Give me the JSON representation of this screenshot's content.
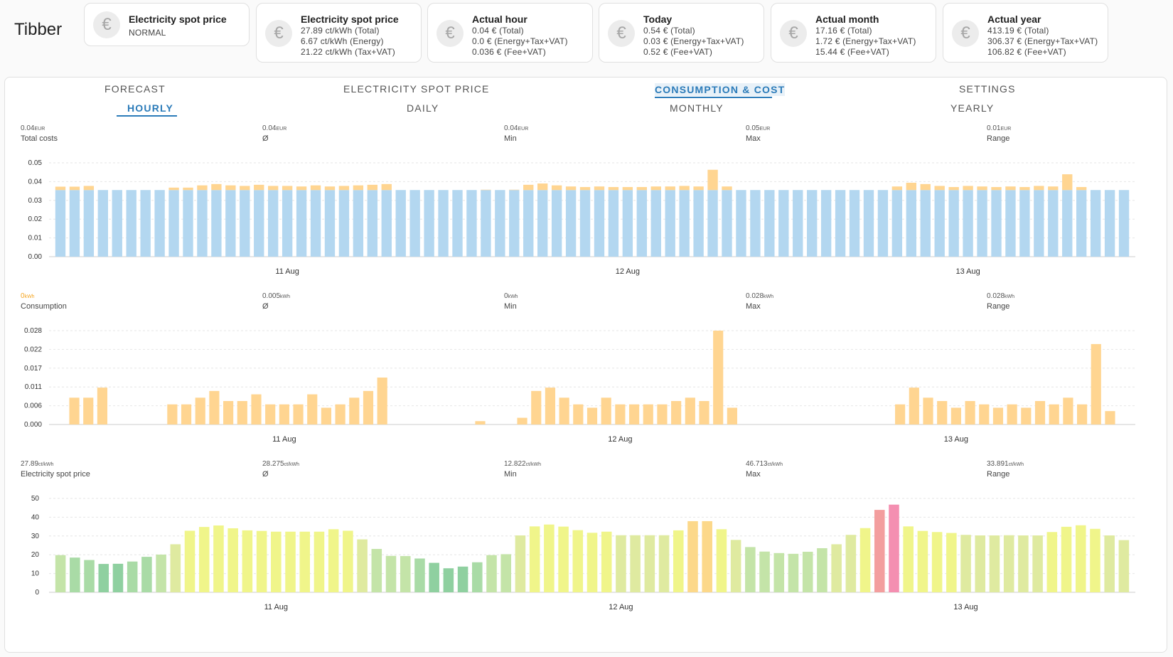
{
  "app": {
    "title": "Tibber"
  },
  "cards": [
    {
      "title": "Electricity spot price",
      "lines": [
        "NORMAL"
      ]
    },
    {
      "title": "Electricity spot price",
      "lines": [
        "27.89 ct/kWh (Total)",
        "6.67 ct/kWh (Energy)",
        "21.22 ct/kWh (Tax+VAT)"
      ]
    },
    {
      "title": "Actual hour",
      "lines": [
        "0.04 € (Total)",
        "0.0 € (Energy+Tax+VAT)",
        "0.036 € (Fee+VAT)"
      ]
    },
    {
      "title": "Today",
      "lines": [
        "0.54 € (Total)",
        "0.03 € (Energy+Tax+VAT)",
        "0.52 € (Fee+VAT)"
      ]
    },
    {
      "title": "Actual month",
      "lines": [
        "17.16 € (Total)",
        "1.72 € (Energy+Tax+VAT)",
        "15.44 € (Fee+VAT)"
      ]
    },
    {
      "title": "Actual year",
      "lines": [
        "413.19 € (Total)",
        "306.37 € (Energy+Tax+VAT)",
        "106.82 € (Fee+VAT)"
      ]
    }
  ],
  "card_icon": "euro-icon",
  "tabs_top": [
    {
      "label": "FORECAST",
      "active": false
    },
    {
      "label": "ELECTRICITY SPOT PRICE",
      "active": false
    },
    {
      "label": "CONSUMPTION & COST",
      "active": true
    },
    {
      "label": "SETTINGS",
      "active": false
    }
  ],
  "tabs_sub": [
    {
      "label": "HOURLY",
      "active": true
    },
    {
      "label": "DAILY",
      "active": false
    },
    {
      "label": "MONTHLY",
      "active": false
    },
    {
      "label": "YEARLY",
      "active": false
    }
  ],
  "colors": {
    "accent": "#2b7bb9",
    "cost_base": "#b3d7f0",
    "cost_top": "#ffd591",
    "consumption": "#ffd591",
    "price_low": "#8fd0a0",
    "price_mid": "#f0f58a",
    "price_high": "#f39e9e",
    "price_peak": "#f48fb1"
  },
  "stats": [
    {
      "items": [
        {
          "value": "0.04",
          "unit": "EUR",
          "label": "Total costs"
        },
        {
          "value": "0.04",
          "unit": "EUR",
          "label": "Ø"
        },
        {
          "value": "0.04",
          "unit": "EUR",
          "label": "Min"
        },
        {
          "value": "0.05",
          "unit": "EUR",
          "label": "Max"
        },
        {
          "value": "0.01",
          "unit": "EUR",
          "label": "Range"
        }
      ]
    },
    {
      "items": [
        {
          "value": "0",
          "unit": "kWh",
          "label": "Consumption",
          "highlight": true
        },
        {
          "value": "0.005",
          "unit": "kWh",
          "label": "Ø"
        },
        {
          "value": "0",
          "unit": "kWh",
          "label": "Min"
        },
        {
          "value": "0.028",
          "unit": "kWh",
          "label": "Max"
        },
        {
          "value": "0.028",
          "unit": "kWh",
          "label": "Range"
        }
      ]
    },
    {
      "items": [
        {
          "value": "27.89",
          "unit": "ct/kWh",
          "label": "Electricity spot price"
        },
        {
          "value": "28.275",
          "unit": "ct/kWh",
          "label": "Ø"
        },
        {
          "value": "12.822",
          "unit": "ct/kWh",
          "label": "Min"
        },
        {
          "value": "46.713",
          "unit": "ct/kWh",
          "label": "Max"
        },
        {
          "value": "33.891",
          "unit": "ct/kWh",
          "label": "Range"
        }
      ]
    }
  ],
  "chart_data": [
    {
      "type": "bar",
      "name": "cost",
      "y_ticks": [
        "0.00",
        "0.01",
        "0.02",
        "0.03",
        "0.04",
        "0.05"
      ],
      "ylim": [
        0,
        0.05
      ],
      "x_labels": [
        "11 Aug",
        "12 Aug",
        "13 Aug"
      ],
      "x_label_hours": [
        16,
        40,
        64
      ],
      "stacked": true,
      "base": 0.0355,
      "values": [
        0.0373,
        0.0373,
        0.0377,
        0.0355,
        0.0355,
        0.0355,
        0.0355,
        0.0355,
        0.0368,
        0.0368,
        0.038,
        0.0387,
        0.038,
        0.0377,
        0.0383,
        0.0377,
        0.0377,
        0.0374,
        0.038,
        0.0374,
        0.0377,
        0.038,
        0.0383,
        0.0387,
        0.0355,
        0.0355,
        0.0355,
        0.0355,
        0.0355,
        0.0355,
        0.0357,
        0.0355,
        0.0357,
        0.0383,
        0.039,
        0.038,
        0.0374,
        0.0371,
        0.0374,
        0.0371,
        0.0371,
        0.0371,
        0.0374,
        0.0374,
        0.0377,
        0.0374,
        0.0463,
        0.0374,
        0.0355,
        0.0355,
        0.0355,
        0.0355,
        0.0355,
        0.0355,
        0.0355,
        0.0355,
        0.0355,
        0.0355,
        0.0355,
        0.0374,
        0.0394,
        0.0387,
        0.0377,
        0.0371,
        0.0377,
        0.0374,
        0.0371,
        0.0374,
        0.0371,
        0.0377,
        0.0374,
        0.0439,
        0.0371,
        0.0355,
        0.0355,
        0.0355
      ]
    },
    {
      "type": "bar",
      "name": "consumption",
      "y_ticks": [
        "0.000",
        "0.006",
        "0.011",
        "0.017",
        "0.022",
        "0.028"
      ],
      "ylim": [
        0,
        0.028
      ],
      "x_labels": [
        "11 Aug",
        "12 Aug",
        "13 Aug"
      ],
      "x_label_hours": [
        16,
        40,
        64
      ],
      "values": [
        0,
        0.008,
        0.008,
        0.011,
        0,
        0,
        0,
        0,
        0.006,
        0.006,
        0.008,
        0.01,
        0.007,
        0.007,
        0.009,
        0.006,
        0.006,
        0.006,
        0.009,
        0.005,
        0.006,
        0.008,
        0.01,
        0.014,
        0,
        0,
        0,
        0,
        0,
        0,
        0.001,
        0,
        0,
        0.002,
        0.01,
        0.011,
        0.008,
        0.006,
        0.005,
        0.008,
        0.006,
        0.006,
        0.006,
        0.006,
        0.007,
        0.008,
        0.007,
        0.028,
        0.005,
        0,
        0,
        0,
        0,
        0,
        0,
        0,
        0,
        0,
        0,
        0,
        0.006,
        0.011,
        0.008,
        0.007,
        0.005,
        0.007,
        0.006,
        0.005,
        0.006,
        0.005,
        0.007,
        0.006,
        0.008,
        0.006,
        0.024,
        0.004,
        0
      ]
    },
    {
      "type": "bar",
      "name": "spot-price",
      "y_ticks": [
        "0",
        "10",
        "20",
        "30",
        "40",
        "50"
      ],
      "ylim": [
        0,
        50
      ],
      "x_labels": [
        "11 Aug",
        "12 Aug",
        "13 Aug"
      ],
      "x_label_hours": [
        15,
        39,
        63
      ],
      "values": [
        19.8,
        18.5,
        17.2,
        15.1,
        15.2,
        16.4,
        18.9,
        20.1,
        25.6,
        32.8,
        34.8,
        35.6,
        34.1,
        33.0,
        32.7,
        32.3,
        32.3,
        32.3,
        32.3,
        33.6,
        32.8,
        28.2,
        23.1,
        19.4,
        19.3,
        18.0,
        15.7,
        12.8,
        13.7,
        16.0,
        19.8,
        20.3,
        30.3,
        35.1,
        36.1,
        35.0,
        33.1,
        31.7,
        32.3,
        30.4,
        30.4,
        30.4,
        30.4,
        33.0,
        37.9,
        37.9,
        33.6,
        27.9,
        24.1,
        21.7,
        20.9,
        20.5,
        21.6,
        23.5,
        25.6,
        30.6,
        34.2,
        43.9,
        46.7,
        35.1,
        32.7,
        32.1,
        31.6,
        30.6,
        30.3,
        30.3,
        30.4,
        30.3,
        30.3,
        32.1,
        34.9,
        35.7,
        33.8,
        30.3,
        27.8
      ]
    }
  ]
}
